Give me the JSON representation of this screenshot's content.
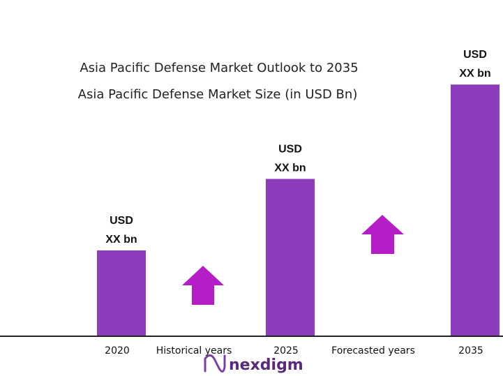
{
  "titles": {
    "line1": "Asia Pacific Defense  Market Outlook to 2035",
    "line2": "Asia Pacific Defense  Market Size (in USD Bn)"
  },
  "periods": {
    "historical": "Historical years",
    "forecasted": "Forecasted years"
  },
  "logo": {
    "text": "nexdigm"
  },
  "colors": {
    "bar": "#8b3dbd",
    "arrow": "#b51ec6",
    "axis": "#222222",
    "logo": "#5a2a7a"
  },
  "chart_data": {
    "type": "bar",
    "categories": [
      "2020",
      "2025",
      "2035"
    ],
    "values": [
      30,
      55,
      88
    ],
    "ylim": [
      0,
      100
    ],
    "data_labels": [
      [
        "USD",
        "XX bn"
      ],
      [
        "USD",
        "XX bn"
      ],
      [
        "USD",
        "XX bn"
      ]
    ],
    "grid": false,
    "legend": "none"
  }
}
